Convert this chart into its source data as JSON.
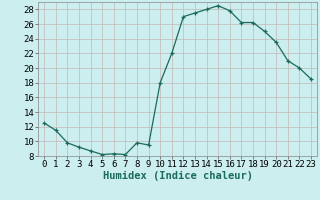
{
  "x": [
    0,
    1,
    2,
    3,
    4,
    5,
    6,
    7,
    8,
    9,
    10,
    11,
    12,
    13,
    14,
    15,
    16,
    17,
    18,
    19,
    20,
    21,
    22,
    23
  ],
  "y": [
    12.5,
    11.5,
    9.8,
    9.2,
    8.7,
    8.2,
    8.3,
    8.2,
    9.8,
    9.5,
    18.0,
    22.0,
    27.0,
    27.5,
    28.0,
    28.5,
    27.8,
    26.2,
    26.2,
    25.0,
    23.5,
    21.0,
    20.0,
    18.5
  ],
  "line_color": "#1a6b5a",
  "bg_color": "#cceeee",
  "grid_color": "#c4b8b8",
  "xlabel": "Humidex (Indice chaleur)",
  "ylim": [
    8,
    29
  ],
  "yticks": [
    8,
    10,
    12,
    14,
    16,
    18,
    20,
    22,
    24,
    26,
    28
  ],
  "xticks": [
    0,
    1,
    2,
    3,
    4,
    5,
    6,
    7,
    8,
    9,
    10,
    11,
    12,
    13,
    14,
    15,
    16,
    17,
    18,
    19,
    20,
    21,
    22,
    23
  ],
  "xlabel_fontsize": 7.5,
  "tick_fontsize": 6.5,
  "marker": "+"
}
